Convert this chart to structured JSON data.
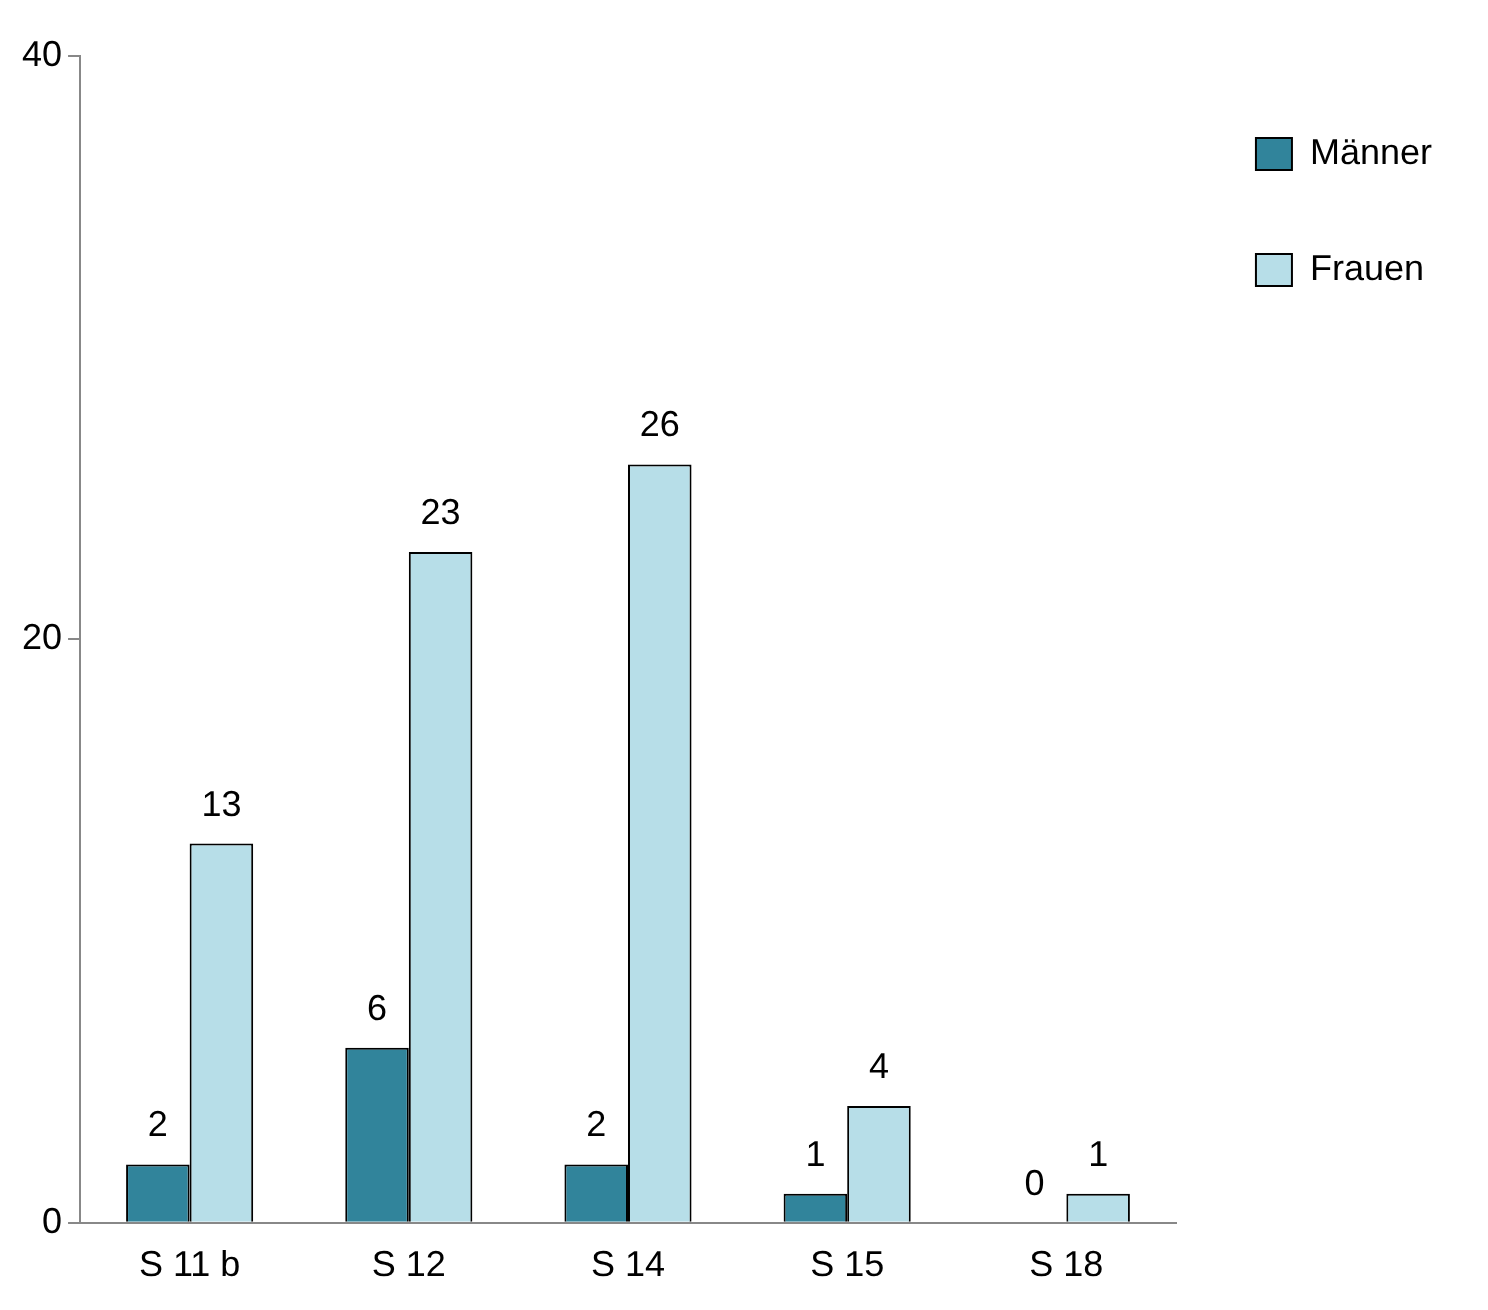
{
  "chart_data": {
    "type": "bar",
    "categories": [
      "S 11 b",
      "S 12",
      "S 14",
      "S 15",
      "S 18"
    ],
    "series": [
      {
        "name": "Männer",
        "color": "#31849b",
        "values": [
          2,
          6,
          2,
          1,
          0
        ]
      },
      {
        "name": "Frauen",
        "color": "#b7dee8",
        "values": [
          13,
          23,
          26,
          4,
          1
        ]
      }
    ],
    "ylim": [
      0,
      40
    ],
    "yticks": [
      0,
      20,
      40
    ],
    "grid": false,
    "legend": "top right",
    "data_labels": true
  }
}
